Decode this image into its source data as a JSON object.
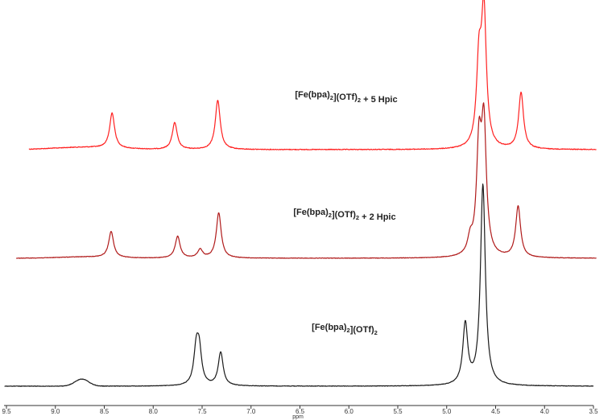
{
  "chart_data": {
    "type": "line",
    "xlabel": "ppm",
    "x_reversed": true,
    "xlim": [
      9.5,
      3.5
    ],
    "xticks": [
      "9.5",
      "9.0",
      "8.5",
      "8.0",
      "7.5",
      "7.0",
      "6.5",
      "6.0",
      "5.5",
      "5.0",
      "4.5",
      "4.0",
      "3.5"
    ],
    "grid": false,
    "legend": "none",
    "series": [
      {
        "label_parts": [
          {
            "t": "[Fe(bpa)",
            "sub": false
          },
          {
            "t": "2",
            "sub": true
          },
          {
            "t": "](OTf)",
            "sub": false
          },
          {
            "t": "2",
            "sub": true
          },
          {
            "t": " + 5 Hpic",
            "sub": false
          }
        ],
        "color": "#ff2020",
        "x_range": [
          9.27,
          3.47
        ],
        "baseline_level": 0.0,
        "broad": {
          "center": 8.7,
          "width": 0.32,
          "height": 0.055
        },
        "peaks": [
          {
            "ppm": 8.42,
            "height": 0.84
          },
          {
            "ppm": 7.78,
            "height": 0.64
          },
          {
            "ppm": 7.34,
            "height": 1.18
          },
          {
            "ppm": 4.67,
            "height": 1.93
          },
          {
            "ppm": 4.62,
            "height": 3.2
          },
          {
            "ppm": 4.24,
            "height": 1.35
          }
        ]
      },
      {
        "label_parts": [
          {
            "t": "[Fe(bpa)",
            "sub": false
          },
          {
            "t": "2",
            "sub": true
          },
          {
            "t": "](OTf)",
            "sub": false
          },
          {
            "t": "2",
            "sub": true
          },
          {
            "t": " + 2 Hpic",
            "sub": false
          }
        ],
        "color": "#b01a1a",
        "x_range": [
          9.4,
          3.47
        ],
        "baseline_level": 0.0,
        "broad": {
          "center": 8.7,
          "width": 0.28,
          "height": 0.03
        },
        "peaks": [
          {
            "ppm": 8.43,
            "height": 0.62
          },
          {
            "ppm": 7.75,
            "height": 0.52
          },
          {
            "ppm": 7.52,
            "height": 0.2
          },
          {
            "ppm": 7.33,
            "height": 1.08
          },
          {
            "ppm": 4.76,
            "height": 0.35
          },
          {
            "ppm": 4.67,
            "height": 2.5
          },
          {
            "ppm": 4.62,
            "height": 3.0
          },
          {
            "ppm": 4.27,
            "height": 1.22
          }
        ]
      },
      {
        "label_parts": [
          {
            "t": "[Fe(bpa)",
            "sub": false
          },
          {
            "t": "2",
            "sub": true
          },
          {
            "t": "](OTf)",
            "sub": false
          },
          {
            "t": "2",
            "sub": true
          }
        ],
        "color": "#1a1a1a",
        "x_range": [
          9.52,
          3.5
        ],
        "baseline_level": 0.0,
        "broad": {
          "center": 8.73,
          "width": 0.07,
          "height": 0.17
        },
        "peaks": [
          {
            "ppm": 7.56,
            "height": 0.8
          },
          {
            "ppm": 7.53,
            "height": 0.78
          },
          {
            "ppm": 7.31,
            "height": 0.8
          },
          {
            "ppm": 4.81,
            "height": 1.45
          },
          {
            "ppm": 4.63,
            "height": 4.8
          }
        ]
      }
    ]
  }
}
